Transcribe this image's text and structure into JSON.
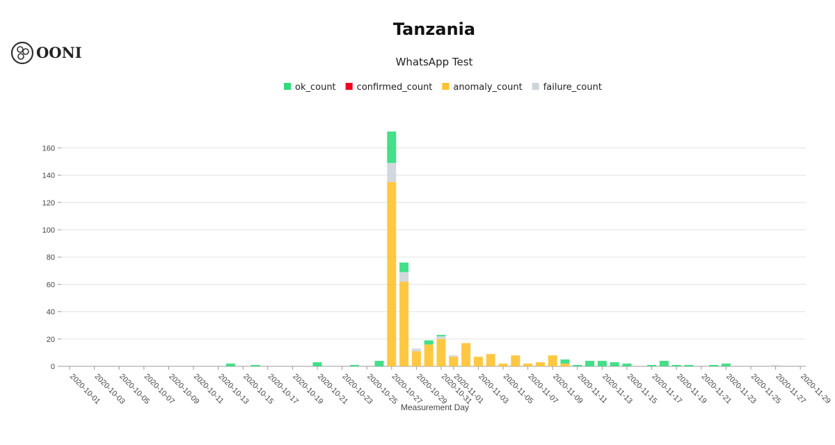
{
  "logo": "OONI",
  "chart_data": {
    "type": "stacked_bar",
    "title": "Tanzania",
    "subtitle": "WhatsApp Test",
    "x_label": "Measurement Day",
    "categories": [
      "2020-10-01",
      null,
      "2020-10-03",
      null,
      "2020-10-05",
      null,
      "2020-10-07",
      null,
      "2020-10-09",
      null,
      "2020-10-11",
      null,
      "2020-10-13",
      null,
      "2020-10-15",
      null,
      "2020-10-17",
      null,
      "2020-10-19",
      null,
      "2020-10-21",
      null,
      "2020-10-23",
      null,
      "2020-10-25",
      null,
      "2020-10-27",
      null,
      "2020-10-29",
      null,
      "2020-10-31",
      "2020-11-01",
      null,
      "2020-11-03",
      null,
      "2020-11-05",
      null,
      "2020-11-07",
      null,
      "2020-11-09",
      null,
      "2020-11-11",
      null,
      "2020-11-13",
      null,
      "2020-11-15",
      null,
      "2020-11-17",
      null,
      "2020-11-19",
      null,
      "2020-11-21",
      null,
      "2020-11-23",
      null,
      "2020-11-25",
      null,
      "2020-11-27",
      null,
      "2020-11-29"
    ],
    "series": [
      {
        "name": "ok_count",
        "color": "#2fdc7c",
        "values": [
          0,
          0,
          0,
          0,
          0,
          0,
          0,
          0,
          0,
          0,
          0,
          0,
          0,
          2,
          0,
          1,
          0,
          0,
          0,
          0,
          3,
          0,
          0,
          1,
          0,
          4,
          23,
          7,
          0,
          3,
          1,
          0,
          0,
          0,
          0,
          0,
          0,
          0,
          0,
          0,
          3,
          1,
          4,
          4,
          3,
          2,
          0,
          1,
          4,
          1,
          1,
          0,
          1,
          2,
          0,
          0,
          0,
          0,
          0,
          0
        ]
      },
      {
        "name": "confirmed_count",
        "color": "#f0001c",
        "values": [
          0,
          0,
          0,
          0,
          0,
          0,
          0,
          0,
          0,
          0,
          0,
          0,
          0,
          0,
          0,
          0,
          0,
          0,
          0,
          0,
          0,
          0,
          0,
          0,
          0,
          0,
          0,
          0,
          0,
          0,
          0,
          0,
          0,
          0,
          0,
          0,
          0,
          0,
          0,
          0,
          0,
          0,
          0,
          0,
          0,
          0,
          0,
          0,
          0,
          0,
          0,
          0,
          0,
          0,
          0,
          0,
          0,
          0,
          0,
          0
        ]
      },
      {
        "name": "anomaly_count",
        "color": "#ffc22d",
        "values": [
          0,
          0,
          0,
          0,
          0,
          0,
          0,
          0,
          0,
          0,
          0,
          0,
          0,
          0,
          0,
          0,
          0,
          0,
          0,
          0,
          0,
          0,
          0,
          0,
          0,
          0,
          135,
          62,
          11,
          16,
          20,
          7,
          17,
          7,
          9,
          2,
          8,
          2,
          3,
          8,
          2,
          0,
          0,
          0,
          0,
          0,
          0,
          0,
          0,
          0,
          0,
          0,
          0,
          0,
          0,
          0,
          0,
          0,
          0,
          0
        ]
      },
      {
        "name": "failure_count",
        "color": "#ced4da",
        "values": [
          0,
          0,
          0,
          0,
          0,
          0,
          0,
          0,
          0,
          0,
          0,
          0,
          0,
          0,
          0,
          0,
          0,
          0,
          0,
          0,
          0,
          0,
          0,
          0,
          0,
          0,
          14,
          7,
          2,
          0,
          2,
          1,
          0,
          0,
          0,
          0,
          0,
          0,
          0,
          0,
          0,
          0,
          0,
          0,
          0,
          0,
          0,
          0,
          0,
          0,
          0,
          0,
          0,
          0,
          0,
          0,
          0,
          1,
          0,
          0
        ]
      }
    ],
    "ylim": [
      0,
      176
    ],
    "yticks": [
      0,
      20,
      40,
      60,
      80,
      100,
      120,
      140,
      160
    ],
    "grid": true,
    "legend": "top"
  }
}
